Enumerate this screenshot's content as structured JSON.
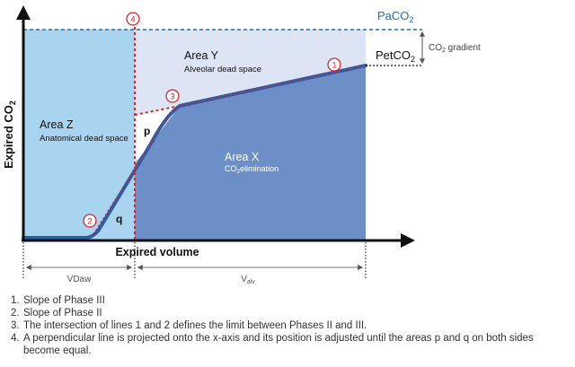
{
  "diagram": {
    "labels": {
      "y_axis": "Expired CO",
      "y_axis_sub": "2",
      "x_axis": "Expired volume",
      "paco2": "PaCO",
      "paco2_sub": "2",
      "petco2": "PetCO",
      "petco2_sub": "2",
      "gradient": "CO",
      "gradient_sub": "2",
      "gradient_rest": " gradient",
      "vdaw": "VDaw",
      "valv": "V",
      "valv_sub": "alv"
    },
    "areas": {
      "z": {
        "title": "Area Z",
        "subtitle": "Anatomical dead space"
      },
      "y": {
        "title": "Area Y",
        "subtitle": "Alveolar dead space"
      },
      "x": {
        "title": "Area X",
        "subtitle_pre": "CO",
        "subtitle_sub": "2",
        "subtitle_post": "elimination"
      },
      "p": "p",
      "q": "q"
    },
    "markers": [
      "1",
      "2",
      "3",
      "4"
    ],
    "colors": {
      "area_z": "#a9d4f0",
      "area_y": "#dde4f3",
      "area_x": "#6d8fc8",
      "curve": "#2a5da8",
      "dotted_red": "#d9262c",
      "paco2": "#1a6fb5",
      "axis": "#111111"
    }
  },
  "notes": [
    {
      "num": "1.",
      "text": "Slope of Phase III"
    },
    {
      "num": "2.",
      "text": "Slope of Phase II"
    },
    {
      "num": "3.",
      "text": "The intersection of lines 1 and 2 defines the limit between Phases II and III."
    },
    {
      "num": "4.",
      "text": "A perpendicular line is projected onto the x-axis and its position is adjusted until the areas p and q on both sides become equal."
    }
  ]
}
